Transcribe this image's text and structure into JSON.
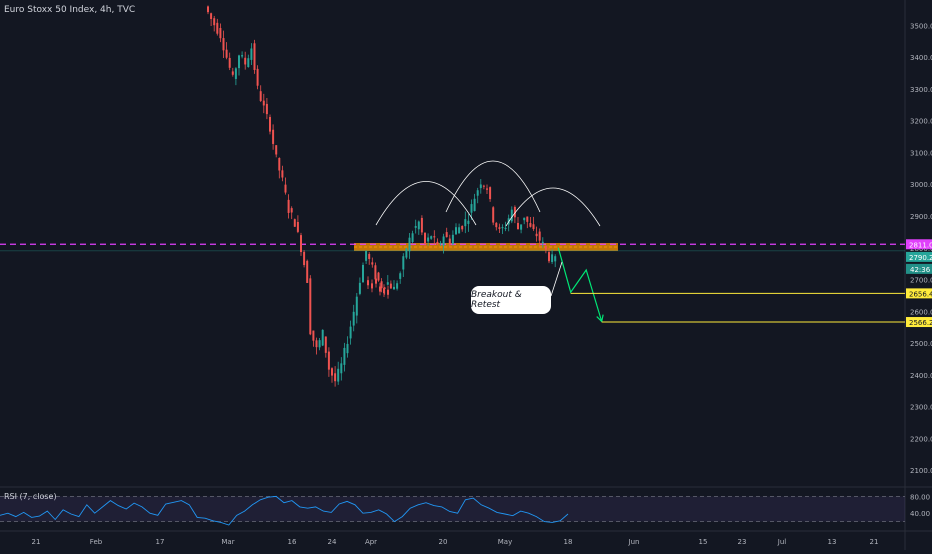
{
  "chart_data": {
    "type": "candlestick",
    "title": "Euro Stoxx 50 Index, 4h, TVC",
    "price_axis": {
      "ylim": [
        2050,
        3580
      ],
      "ticks": [
        3500,
        3400,
        3300,
        3200,
        3100,
        3000,
        2900,
        2800,
        2700,
        2600,
        2500,
        2400,
        2300,
        2200,
        2100
      ],
      "tick_labels": [
        "3500.0",
        "3400.0",
        "3300.0",
        "3200.0",
        "3100.0",
        "3000.0",
        "2900.0",
        "2800.0",
        "2700.0",
        "2600.0",
        "2500.0",
        "2400.0",
        "2300.0",
        "2200.0",
        "2100.0"
      ]
    },
    "time_axis": {
      "labels": [
        "21",
        "Feb",
        "17",
        "Mar",
        "16",
        "24",
        "Apr",
        "20",
        "May",
        "18",
        "Jun",
        "15",
        "23",
        "Jul",
        "13",
        "21"
      ]
    },
    "price_path": [
      [
        0,
        3560
      ],
      [
        2,
        3520
      ],
      [
        5,
        3470
      ],
      [
        7,
        3400
      ],
      [
        9,
        3330
      ],
      [
        11,
        3410
      ],
      [
        13,
        3380
      ],
      [
        15,
        3430
      ],
      [
        17,
        3300
      ],
      [
        19,
        3240
      ],
      [
        21,
        3180
      ],
      [
        23,
        3080
      ],
      [
        25,
        3010
      ],
      [
        27,
        2920
      ],
      [
        29,
        2880
      ],
      [
        31,
        2800
      ],
      [
        33,
        2700
      ],
      [
        34,
        2540
      ],
      [
        36,
        2480
      ],
      [
        38,
        2530
      ],
      [
        40,
        2420
      ],
      [
        42,
        2380
      ],
      [
        44,
        2430
      ],
      [
        46,
        2510
      ],
      [
        48,
        2600
      ],
      [
        50,
        2700
      ],
      [
        52,
        2790
      ],
      [
        53,
        2760
      ],
      [
        55,
        2710
      ],
      [
        57,
        2680
      ],
      [
        59,
        2690
      ],
      [
        61,
        2670
      ],
      [
        63,
        2720
      ],
      [
        65,
        2800
      ],
      [
        67,
        2850
      ],
      [
        69,
        2880
      ],
      [
        71,
        2810
      ],
      [
        73,
        2840
      ],
      [
        75,
        2800
      ],
      [
        77,
        2840
      ],
      [
        79,
        2820
      ],
      [
        81,
        2860
      ],
      [
        83,
        2870
      ],
      [
        85,
        2900
      ],
      [
        87,
        2960
      ],
      [
        89,
        3010
      ],
      [
        91,
        2990
      ],
      [
        93,
        2890
      ],
      [
        95,
        2850
      ],
      [
        97,
        2870
      ],
      [
        99,
        2920
      ],
      [
        101,
        2860
      ],
      [
        103,
        2900
      ],
      [
        105,
        2860
      ],
      [
        107,
        2840
      ],
      [
        109,
        2810
      ],
      [
        111,
        2770
      ],
      [
        113,
        2760
      ]
    ],
    "resistance": 2811,
    "last_price": 2790.2,
    "countdown": "42:36",
    "targets": [
      2656.4,
      2566.2
    ],
    "projection": [
      [
        113,
        2800
      ],
      [
        117,
        2660
      ],
      [
        122,
        2730
      ],
      [
        127,
        2568
      ]
    ],
    "rsi": {
      "label": "RSI (7, close)",
      "ticks": [
        "80.00",
        "40.00"
      ],
      "overbought": 80,
      "oversold": 20,
      "values": [
        35,
        40,
        32,
        42,
        30,
        33,
        45,
        25,
        48,
        38,
        32,
        60,
        40,
        55,
        70,
        58,
        50,
        64,
        55,
        40,
        35,
        62,
        66,
        70,
        60,
        30,
        28,
        22,
        18,
        12,
        35,
        45,
        60,
        72,
        78,
        80,
        65,
        70,
        55,
        52,
        55,
        45,
        42,
        62,
        68,
        60,
        40,
        42,
        48,
        38,
        20,
        32,
        52,
        60,
        65,
        58,
        55,
        44,
        40,
        72,
        76,
        60,
        52,
        42,
        38,
        34,
        45,
        40,
        32,
        20,
        18,
        22,
        38
      ]
    },
    "annotation": "Breakout & Retest",
    "colors": {
      "up": "#26a69a",
      "down": "#ef5350",
      "resistance": "#e040fb",
      "zone": "#ff9800",
      "target": "#ffeb3b",
      "projection": "#00e676",
      "last": "#2962ff",
      "rsi": "#2196f3"
    }
  }
}
